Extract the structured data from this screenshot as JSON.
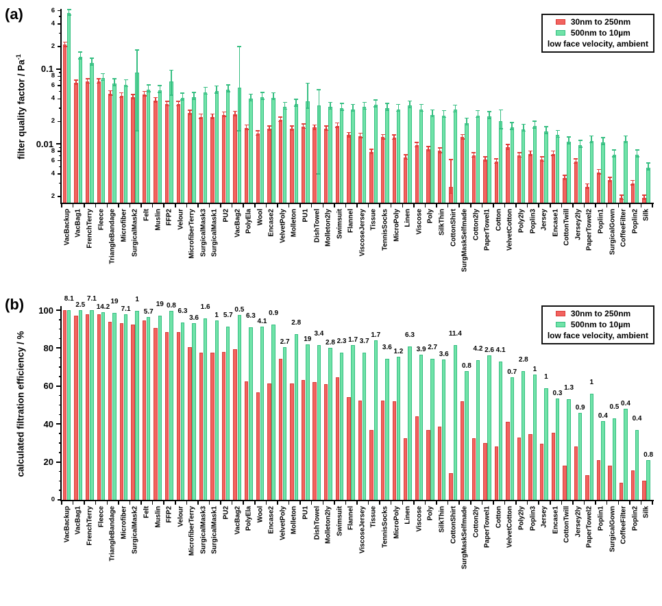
{
  "figure": {
    "panel_a_letter": "(a)",
    "panel_b_letter": "(b)",
    "legend": {
      "series1": "30nm to 250nm",
      "series2": "500nm to 10µm",
      "condition": "low face velocity, ambient"
    },
    "colors": {
      "red_fill": "#F2635F",
      "red_edge": "#D93A37",
      "red_err": "#E23B38",
      "green_fill": "#70E3A8",
      "green_edge": "#35BE81",
      "green_err": "#35BE81",
      "axis": "#000000"
    }
  },
  "chart_data": [
    {
      "type": "bar",
      "panel": "a",
      "ylabel": "filter quality factor / Pa",
      "ylabel_sup": "-1",
      "yscale": "log",
      "ylim": [
        0.00165,
        0.62
      ],
      "legend_position": "top-right",
      "grid": false,
      "categories": [
        "VacBackup",
        "VacBag1",
        "FrenchTerry",
        "Fleece",
        "TriangleBandage",
        "Microfiber",
        "SurgicalMask2",
        "Felt",
        "Muslin",
        "FFP2",
        "Velour",
        "MicrofiberTerry",
        "SurgicalMask3",
        "SurgicalMask1",
        "PU2",
        "VacBag2",
        "PolyEla",
        "Wool",
        "Encase2",
        "VelvetPoly",
        "Molleton",
        "PU1",
        "DishTowel",
        "Molleton2ly",
        "Swimsuit",
        "Flannel",
        "ViscoseJersey",
        "Tissue",
        "TennisSocks",
        "MicroPoly",
        "Linen",
        "Viscose",
        "Poly",
        "SilkThin",
        "CottonShirt",
        "SurgMaskSelfmade",
        "Cotton2ly",
        "PaperTowel1",
        "Cotton",
        "VelvetCotton",
        "Poly2ly",
        "Poplin3",
        "Jersey",
        "Encase1",
        "CottonTwill",
        "Jersey2ly",
        "PaperTowel2",
        "Poplin1",
        "SurgicalGown",
        "CoffeeFilter",
        "Poplin2",
        "Silk"
      ],
      "series": [
        {
          "name": "30nm to 250nm",
          "key": "red",
          "values": [
            0.21,
            0.065,
            0.068,
            0.068,
            0.047,
            0.044,
            0.042,
            0.046,
            0.038,
            0.034,
            0.034,
            0.026,
            0.023,
            0.023,
            0.0245,
            0.025,
            0.0164,
            0.0138,
            0.016,
            0.021,
            0.016,
            0.017,
            0.0165,
            0.016,
            0.0175,
            0.0131,
            0.0128,
            0.0078,
            0.0123,
            0.0121,
            0.0066,
            0.0096,
            0.0085,
            0.0081,
            0.0027,
            0.0123,
            0.007,
            0.0062,
            0.0058,
            0.009,
            0.007,
            0.0074,
            0.0062,
            0.0074,
            0.0035,
            0.0058,
            0.0027,
            0.0042,
            0.0033,
            0.0019,
            0.003,
            0.0019
          ]
        },
        {
          "name": "500nm to 10µm",
          "key": "green",
          "values": [
            0.56,
            0.145,
            0.12,
            0.075,
            0.064,
            0.062,
            0.09,
            0.053,
            0.052,
            0.068,
            0.041,
            0.042,
            0.049,
            0.051,
            0.053,
            0.056,
            0.04,
            0.042,
            0.0415,
            0.031,
            0.034,
            0.037,
            0.0324,
            0.031,
            0.03,
            0.029,
            0.031,
            0.0334,
            0.03,
            0.029,
            0.0324,
            0.029,
            0.0245,
            0.024,
            0.0285,
            0.019,
            0.024,
            0.0234,
            0.02,
            0.0167,
            0.0158,
            0.0173,
            0.0146,
            0.0131,
            0.0107,
            0.0096,
            0.011,
            0.0105,
            0.0072,
            0.011,
            0.0072,
            0.0048
          ]
        }
      ],
      "error_defaults": {
        "red": [
          0.95,
          1.09
        ],
        "green": [
          0.94,
          1.16
        ]
      },
      "error_overrides": {
        "red": {
          "CottonShirt": [
            0.0022,
            0.0062
          ]
        },
        "green": {
          "SurgicalMask2": [
            0.015,
            0.18
          ],
          "FFP2": [
            0.045,
            0.096
          ],
          "VacBag2": [
            0.015,
            0.2
          ],
          "PU1": [
            0.03,
            0.065
          ],
          "DishTowel": [
            0.004,
            0.053
          ],
          "Cotton": [
            0.016,
            0.0285
          ]
        }
      },
      "yticks": [
        [
          0.6,
          "6"
        ],
        [
          0.5,
          ""
        ],
        [
          0.4,
          "4"
        ],
        [
          0.3,
          ""
        ],
        [
          0.2,
          "2"
        ],
        [
          0.1,
          "0.1"
        ],
        [
          0.09,
          ""
        ],
        [
          0.08,
          "8"
        ],
        [
          0.07,
          ""
        ],
        [
          0.06,
          "6"
        ],
        [
          0.05,
          ""
        ],
        [
          0.04,
          "4"
        ],
        [
          0.03,
          ""
        ],
        [
          0.02,
          "2"
        ],
        [
          0.01,
          "0.01"
        ],
        [
          0.009,
          ""
        ],
        [
          0.008,
          "8"
        ],
        [
          0.007,
          ""
        ],
        [
          0.006,
          "6"
        ],
        [
          0.005,
          ""
        ],
        [
          0.004,
          "4"
        ],
        [
          0.003,
          ""
        ],
        [
          0.002,
          "2"
        ]
      ]
    },
    {
      "type": "bar",
      "panel": "b",
      "ylabel": "calculated filtration efficiency / %",
      "yscale": "linear",
      "ylim": [
        0,
        100
      ],
      "legend_position": "top-right",
      "grid": false,
      "categories": [
        "VacBackup",
        "VacBag1",
        "FrenchTerry",
        "Fleece",
        "TriangleBandage",
        "Microfiber",
        "SurgicalMask2",
        "Felt",
        "Muslin",
        "FFP2",
        "Velour",
        "MicrofiberTerry",
        "SurgicalMask3",
        "SurgicalMask1",
        "PU2",
        "VacBag2",
        "PolyEla",
        "Wool",
        "Encase2",
        "VelvetPoly",
        "Molleton",
        "PU1",
        "DishTowel",
        "Molleton2ly",
        "Swimsuit",
        "Flannel",
        "ViscoseJersey",
        "Tissue",
        "TennisSocks",
        "MicroPoly",
        "Linen",
        "Viscose",
        "Poly",
        "SilkThin",
        "CottonShirt",
        "SurgMaskSelfmade",
        "Cotton2ly",
        "PaperTowel1",
        "Cotton",
        "VelvetCotton",
        "Poly2ly",
        "Poplin3",
        "Jersey",
        "Encase1",
        "CottonTwill",
        "Jersey2ly",
        "PaperTowel2",
        "Poplin1",
        "SurgicalGown",
        "CoffeeFilter",
        "Poplin2",
        "Silk"
      ],
      "series": [
        {
          "name": "30nm to 250nm",
          "key": "red",
          "values": [
            100,
            97,
            98,
            98,
            94,
            93,
            92.5,
            94.5,
            90.5,
            88.5,
            88.5,
            80.5,
            77.5,
            77.5,
            78,
            79.5,
            62.5,
            56.5,
            61.5,
            74.5,
            61.5,
            63,
            62,
            61,
            64.5,
            54,
            52.5,
            37,
            52.5,
            52,
            32.5,
            44,
            37,
            38.5,
            14,
            52,
            32.5,
            30,
            28,
            41,
            33,
            34.5,
            29.5,
            35.5,
            18,
            28,
            13,
            21,
            18,
            9,
            15.5,
            10
          ]
        },
        {
          "name": "500nm to 10µm",
          "key": "green",
          "values": [
            100,
            100,
            100,
            99,
            98.5,
            98,
            99.5,
            96.5,
            97,
            99.5,
            93.5,
            93,
            95.5,
            94.5,
            91.5,
            97.5,
            91,
            91.5,
            92.5,
            80.5,
            87.5,
            82,
            81.5,
            80,
            77.5,
            81.5,
            77.5,
            84,
            74.5,
            75.5,
            81,
            76.5,
            74.5,
            74,
            81.5,
            68,
            73.5,
            76,
            73,
            64.5,
            68,
            66,
            59,
            53.5,
            53,
            46,
            56,
            41.5,
            43,
            48,
            37,
            21
          ]
        }
      ],
      "value_labels": [
        "8.1",
        "2.5",
        "7.1",
        "14.2",
        "19",
        "7.1",
        "1",
        "5.7",
        "19",
        "0.8",
        "6.3",
        "3.6",
        "1.6",
        "1",
        "5.7",
        "0.5",
        "6.3",
        "4.1",
        "0.9",
        "2.7",
        "2.8",
        "19",
        "3.4",
        "2.8",
        "2.3",
        "1.7",
        "3.7",
        "1.7",
        "3.6",
        "1.2",
        "6.3",
        "3.9",
        "2.7",
        "3.6",
        "11.4",
        "0.8",
        "4.2",
        "2.6",
        "4.1",
        "0.7",
        "2.8",
        "1",
        "1",
        "0.3",
        "1.3",
        "0.9",
        "1",
        "0.4",
        "0.5",
        "0.4",
        "0.4",
        "0.8"
      ],
      "yticks": [
        [
          0,
          "0"
        ],
        [
          5,
          ""
        ],
        [
          10,
          ""
        ],
        [
          15,
          ""
        ],
        [
          20,
          "20"
        ],
        [
          25,
          ""
        ],
        [
          30,
          ""
        ],
        [
          35,
          ""
        ],
        [
          40,
          "40"
        ],
        [
          45,
          ""
        ],
        [
          50,
          ""
        ],
        [
          55,
          ""
        ],
        [
          60,
          "60"
        ],
        [
          65,
          ""
        ],
        [
          70,
          ""
        ],
        [
          75,
          ""
        ],
        [
          80,
          "80"
        ],
        [
          85,
          ""
        ],
        [
          90,
          ""
        ],
        [
          95,
          ""
        ],
        [
          100,
          "100"
        ]
      ]
    }
  ]
}
